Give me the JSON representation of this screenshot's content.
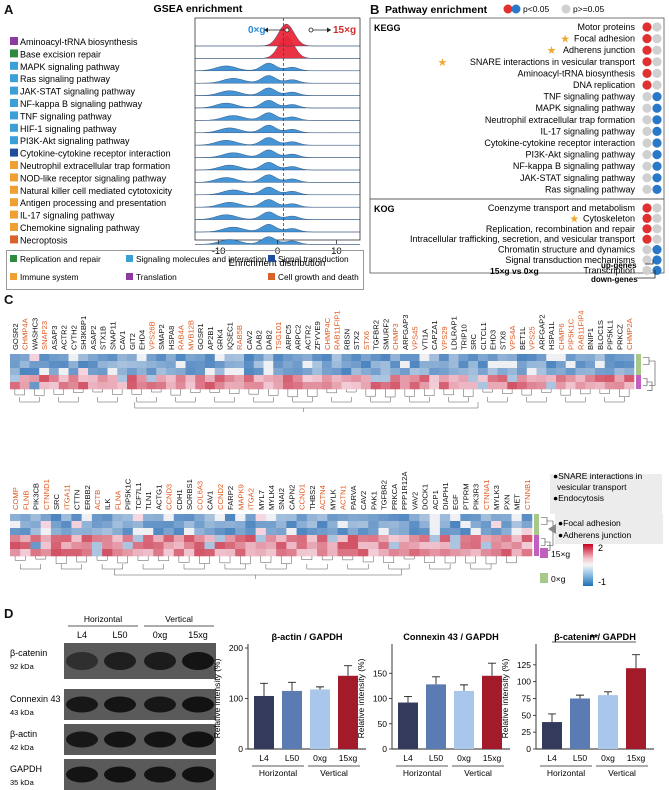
{
  "panels": {
    "A": "A",
    "B": "B",
    "C": "C",
    "D": "D"
  },
  "panelA": {
    "title": "GSEA enrichment",
    "left_label": "0×g",
    "right_label": "15×g",
    "xlabel": "Enrichment distribution",
    "xticks": [
      "-10",
      "0",
      "10"
    ],
    "pathways": [
      {
        "name": "Aminoacyl-tRNA biosynthesis",
        "color": "#8e3a9e",
        "dir": "up"
      },
      {
        "name": "Base excision repair",
        "color": "#2e8b3e",
        "dir": "up"
      },
      {
        "name": "MAPK signaling pathway",
        "color": "#3ba0d8",
        "dir": "down"
      },
      {
        "name": "Ras signaling pathway",
        "color": "#3ba0d8",
        "dir": "down"
      },
      {
        "name": "JAK-STAT signaling pathway",
        "color": "#3ba0d8",
        "dir": "down"
      },
      {
        "name": "NF-kappa B signaling pathway",
        "color": "#3ba0d8",
        "dir": "down"
      },
      {
        "name": "TNF signaling pathway",
        "color": "#3ba0d8",
        "dir": "down"
      },
      {
        "name": "HIF-1 signaling pathway",
        "color": "#3ba0d8",
        "dir": "down"
      },
      {
        "name": "PI3K-Akt signaling pathway",
        "color": "#3ba0d8",
        "dir": "down"
      },
      {
        "name": "Cytokine-cytokine receptor interaction",
        "color": "#1f4e9e",
        "dir": "down"
      },
      {
        "name": "Neutrophil extracellular trap formation",
        "color": "#f0a030",
        "dir": "down"
      },
      {
        "name": "NOD-like receptor signaling pathway",
        "color": "#f0a030",
        "dir": "down"
      },
      {
        "name": "Natural killer cell mediated cytotoxicity",
        "color": "#f0a030",
        "dir": "down"
      },
      {
        "name": "Antigen processing and presentation",
        "color": "#f0a030",
        "dir": "down"
      },
      {
        "name": "IL-17 signaling pathway",
        "color": "#f0a030",
        "dir": "down"
      },
      {
        "name": "Chemokine signaling pathway",
        "color": "#f0a030",
        "dir": "down"
      },
      {
        "name": "Necroptosis",
        "color": "#d9622b",
        "dir": "down"
      }
    ],
    "legend": [
      {
        "label": "Replication and repair",
        "color": "#2e8b3e"
      },
      {
        "label": "Signaling molecules and interaction",
        "color": "#3ba0d8"
      },
      {
        "label": "Signal transduction",
        "color": "#1f4e9e"
      },
      {
        "label": "Immune system",
        "color": "#f0a030"
      },
      {
        "label": "Translation",
        "color": "#8e3a9e"
      },
      {
        "label": "Cell growth and death",
        "color": "#d9622b"
      }
    ]
  },
  "panelB": {
    "title": "Pathway enrichment",
    "legend_sig": "p<0.05",
    "legend_ns": "p>=0.05",
    "kegg_label": "KEGG",
    "kog_label": "KOG",
    "kegg": [
      {
        "name": "Motor proteins",
        "star": false,
        "up": "sig_red",
        "down": "ns"
      },
      {
        "name": "Focal adhesion",
        "star": true,
        "up": "sig_red",
        "down": "ns"
      },
      {
        "name": "Adherens junction",
        "star": true,
        "up": "sig_red",
        "down": "ns"
      },
      {
        "name": "SNARE interactions in vesicular transport",
        "star": true,
        "up": "sig_red",
        "down": "ns"
      },
      {
        "name": "Aminoacyl-tRNA biosynthesis",
        "star": false,
        "up": "sig_red",
        "down": "ns"
      },
      {
        "name": "DNA replication",
        "star": false,
        "up": "sig_red",
        "down": "ns"
      },
      {
        "name": "TNF signaling pathway",
        "star": false,
        "up": "ns",
        "down": "sig_blue"
      },
      {
        "name": "MAPK signaling pathway",
        "star": false,
        "up": "ns",
        "down": "sig_blue"
      },
      {
        "name": "Neutrophil extracellular trap formation",
        "star": false,
        "up": "ns",
        "down": "sig_blue"
      },
      {
        "name": "IL-17 signaling pathway",
        "star": false,
        "up": "ns",
        "down": "sig_blue"
      },
      {
        "name": "Cytokine-cytokine receptor interaction",
        "star": false,
        "up": "ns",
        "down": "sig_blue"
      },
      {
        "name": "PI3K-Akt signaling pathway",
        "star": false,
        "up": "ns",
        "down": "sig_blue"
      },
      {
        "name": "NF-kappa B signaling pathway",
        "star": false,
        "up": "ns",
        "down": "sig_blue"
      },
      {
        "name": "JAK-STAT signaling pathway",
        "star": false,
        "up": "ns",
        "down": "sig_blue"
      },
      {
        "name": "Ras signaling pathway",
        "star": false,
        "up": "ns",
        "down": "sig_blue"
      }
    ],
    "kog": [
      {
        "name": "Coenzyme transport and metabolism",
        "star": false,
        "up": "sig_red",
        "down": "ns"
      },
      {
        "name": "Cytoskeleton",
        "star": true,
        "up": "sig_red",
        "down": "ns"
      },
      {
        "name": "Replication, recombination and repair",
        "star": false,
        "up": "sig_red",
        "down": "ns"
      },
      {
        "name": "Intracellular trafficking, secretion, and vesicular transport",
        "star": true,
        "up": "sig_red",
        "down": "ns"
      },
      {
        "name": "Chromatin structure and dynamics",
        "star": false,
        "up": "ns",
        "down": "sig_blue"
      },
      {
        "name": "Signal transduction mechanisms",
        "star": false,
        "up": "ns",
        "down": "sig_blue"
      },
      {
        "name": "Transcription",
        "star": false,
        "up": "ns",
        "down": "sig_blue"
      }
    ],
    "comparison": "15×g vs 0×g",
    "up_genes": "up-genes",
    "down_genes": "down-genes"
  },
  "panelC": {
    "genes_top": [
      {
        "g": "GOSR2",
        "r": false
      },
      {
        "g": "CHMP4A",
        "r": true
      },
      {
        "g": "WASHC3",
        "r": false
      },
      {
        "g": "SNAP23",
        "r": true
      },
      {
        "g": "ASAP3",
        "r": false
      },
      {
        "g": "ACTR2",
        "r": false
      },
      {
        "g": "CYTH2",
        "r": false
      },
      {
        "g": "SH3KBP1",
        "r": false
      },
      {
        "g": "ASAP2",
        "r": false
      },
      {
        "g": "STX1B",
        "r": false
      },
      {
        "g": "SNAP11",
        "r": false
      },
      {
        "g": "CAV1",
        "r": false
      },
      {
        "g": "GIT2",
        "r": false
      },
      {
        "g": "EHD4",
        "r": false
      },
      {
        "g": "VPS26B",
        "r": true
      },
      {
        "g": "SMAP2",
        "r": false
      },
      {
        "g": "HSPA8",
        "r": false
      },
      {
        "g": "RAB4A",
        "r": true
      },
      {
        "g": "MVB12B",
        "r": true
      },
      {
        "g": "GOSR1",
        "r": false
      },
      {
        "g": "AP2B1",
        "r": false
      },
      {
        "g": "GRK4",
        "r": false
      },
      {
        "g": "IQSEC1",
        "r": false
      },
      {
        "g": "RAB5B",
        "r": true
      },
      {
        "g": "CAV2",
        "r": false
      },
      {
        "g": "DAB2",
        "r": false
      },
      {
        "g": "DAB2",
        "r": false
      },
      {
        "g": "TSG101",
        "r": true
      },
      {
        "g": "ARPC5",
        "r": false
      },
      {
        "g": "ARPC2",
        "r": false
      },
      {
        "g": "ACTR2",
        "r": false
      },
      {
        "g": "ZFYVE9",
        "r": false
      },
      {
        "g": "CHMP4C",
        "r": true
      },
      {
        "g": "RAB11FIP1",
        "r": true
      },
      {
        "g": "RBSN",
        "r": false
      },
      {
        "g": "STX2",
        "r": false
      },
      {
        "g": "STX6",
        "r": true
      },
      {
        "g": "TGFBR2",
        "r": false
      },
      {
        "g": "SMURF2",
        "r": false
      },
      {
        "g": "CHMP3",
        "r": true
      },
      {
        "g": "ARFGAP3",
        "r": false
      },
      {
        "g": "VPS45",
        "r": true
      },
      {
        "g": "VTI1A",
        "r": false
      },
      {
        "g": "CAPZA1",
        "r": false
      },
      {
        "g": "VPS29",
        "r": true
      },
      {
        "g": "LDLRAP1",
        "r": false
      },
      {
        "g": "TRIP10",
        "r": false
      },
      {
        "g": "SRC",
        "r": false
      },
      {
        "g": "CLTCL1",
        "r": false
      },
      {
        "g": "EHD3",
        "r": false
      },
      {
        "g": "STX8",
        "r": false
      },
      {
        "g": "VPS4A",
        "r": true
      },
      {
        "g": "BET1L",
        "r": false
      },
      {
        "g": "VPS25",
        "r": true
      },
      {
        "g": "ARFGAP2",
        "r": false
      },
      {
        "g": "HSPA1L",
        "r": false
      },
      {
        "g": "CHMP6",
        "r": true
      },
      {
        "g": "PIP5K1C",
        "r": true
      },
      {
        "g": "RAB11FIP4",
        "r": true
      },
      {
        "g": "BNIP1",
        "r": false
      },
      {
        "g": "BLOC1S",
        "r": false
      },
      {
        "g": "PIP5KL1",
        "r": false
      },
      {
        "g": "PRKCZ",
        "r": false
      },
      {
        "g": "CHMP2A",
        "r": true
      }
    ],
    "genes_bottom": [
      {
        "g": "COMP",
        "r": true
      },
      {
        "g": "FLNB",
        "r": true
      },
      {
        "g": "PIK3CB",
        "r": false
      },
      {
        "g": "CTNND1",
        "r": true
      },
      {
        "g": "SRC",
        "r": false
      },
      {
        "g": "ITGA11",
        "r": true
      },
      {
        "g": "CTTN",
        "r": false
      },
      {
        "g": "ERBB2",
        "r": false
      },
      {
        "g": "ACTB",
        "r": true
      },
      {
        "g": "ILK",
        "r": false
      },
      {
        "g": "FLNA",
        "r": true
      },
      {
        "g": "PIP5K1C",
        "r": false
      },
      {
        "g": "TCF7L1",
        "r": false
      },
      {
        "g": "TLN1",
        "r": false
      },
      {
        "g": "ACTG1",
        "r": false
      },
      {
        "g": "CCND3",
        "r": true
      },
      {
        "g": "CDH1",
        "r": false
      },
      {
        "g": "SORBS1",
        "r": false
      },
      {
        "g": "COL6A3",
        "r": true
      },
      {
        "g": "CAV1",
        "r": false
      },
      {
        "g": "CCND2",
        "r": true
      },
      {
        "g": "FARP2",
        "r": false
      },
      {
        "g": "MAPK9",
        "r": true
      },
      {
        "g": "ITGA2",
        "r": true
      },
      {
        "g": "MYL7",
        "r": false
      },
      {
        "g": "MYLK4",
        "r": false
      },
      {
        "g": "SNAI2",
        "r": false
      },
      {
        "g": "CAPN2",
        "r": false
      },
      {
        "g": "CCND1",
        "r": true
      },
      {
        "g": "THBS2",
        "r": false
      },
      {
        "g": "ACTN4",
        "r": true
      },
      {
        "g": "MYLK",
        "r": false
      },
      {
        "g": "ACTN1",
        "r": true
      },
      {
        "g": "PARVA",
        "r": false
      },
      {
        "g": "CAV2",
        "r": false
      },
      {
        "g": "PAK1",
        "r": false
      },
      {
        "g": "TGFBR2",
        "r": false
      },
      {
        "g": "PRKCA",
        "r": false
      },
      {
        "g": "PPP1R12A",
        "r": false
      },
      {
        "g": "VAV2",
        "r": false
      },
      {
        "g": "DOCK1",
        "r": false
      },
      {
        "g": "ACP1",
        "r": false
      },
      {
        "g": "DIAPH1",
        "r": false
      },
      {
        "g": "EGF",
        "r": false
      },
      {
        "g": "PTPRM",
        "r": false
      },
      {
        "g": "PIK3R3",
        "r": false
      },
      {
        "g": "CTNNA1",
        "r": true
      },
      {
        "g": "MYLK3",
        "r": false
      },
      {
        "g": "PXN",
        "r": false
      },
      {
        "g": "MET",
        "r": false
      },
      {
        "g": "CTNNB1",
        "r": true
      }
    ],
    "annot_top": [
      "SNARE interactions in",
      "vesicular transport",
      "Endocytosis"
    ],
    "annot_bottom": [
      "Focal adhesion",
      "Adherens junction"
    ],
    "legend_15": "15×g",
    "legend_0": "0×g",
    "scale_max": "2",
    "scale_min": "-1"
  },
  "panelD": {
    "blot": {
      "group_h": "Horizontal",
      "group_v": "Vertical",
      "lanes": [
        "L4",
        "L50",
        "0xg",
        "15xg"
      ],
      "rows": [
        {
          "name": "β-catenin",
          "kda": "92 kDa"
        },
        {
          "name": "Connexin 43",
          "kda": "43 kDa"
        },
        {
          "name": "β-actin",
          "kda": "42 kDa"
        },
        {
          "name": "GAPDH",
          "kda": "35 kDa"
        }
      ]
    },
    "ylabel": "Relative intensity (%)",
    "categories": [
      "L4",
      "L50",
      "0xg",
      "15xg"
    ],
    "group_h": "Horizontal",
    "group_v": "Vertical",
    "sig_label": "**",
    "colors": [
      "#333a5c",
      "#5b7bb3",
      "#a9c7ea",
      "#a31b2b"
    ]
  },
  "chart_data": [
    {
      "type": "bar",
      "title": "β-actin / GAPDH",
      "categories": [
        "L4",
        "L50",
        "0xg",
        "15xg"
      ],
      "values": [
        105,
        115,
        118,
        145
      ],
      "errors": [
        25,
        17,
        5,
        20
      ],
      "ylim": [
        0,
        200
      ],
      "yticks": [
        0,
        100,
        200
      ],
      "ylabel": "Relative intensity (%)"
    },
    {
      "type": "bar",
      "title": "Connexin 43 / GAPDH",
      "categories": [
        "L4",
        "L50",
        "0xg",
        "15xg"
      ],
      "values": [
        92,
        128,
        115,
        145
      ],
      "errors": [
        12,
        15,
        12,
        25
      ],
      "ylim": [
        0,
        200
      ],
      "yticks": [
        0,
        50,
        100,
        150
      ],
      "ylabel": "Relative intensity (%)"
    },
    {
      "type": "bar",
      "title": "β-catenin / GAPDH",
      "categories": [
        "L4",
        "L50",
        "0xg",
        "15xg"
      ],
      "values": [
        40,
        75,
        80,
        120
      ],
      "errors": [
        12,
        5,
        5,
        20
      ],
      "ylim": [
        0,
        150
      ],
      "yticks": [
        0,
        25,
        50,
        75,
        100,
        125
      ],
      "ylabel": "Relative intensity (%)",
      "significance": "**"
    }
  ]
}
